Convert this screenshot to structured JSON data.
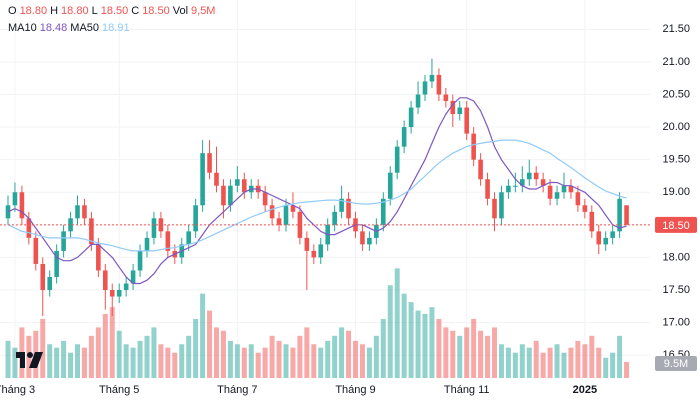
{
  "chart_data": {
    "type": "candlestick",
    "header": [
      [
        {
          "label": "O",
          "value": 18.8,
          "value_label": "18.80"
        },
        {
          "label": "H",
          "value": 18.8,
          "value_label": "18.80"
        },
        {
          "label": "L",
          "value": 18.5,
          "value_label": "18.50"
        },
        {
          "label": "C",
          "value": 18.5,
          "value_label": "18.50"
        },
        {
          "label": "Vol",
          "value": 9.5,
          "value_label": "9,5M"
        }
      ],
      [
        {
          "label": "MA10",
          "value": 18.48,
          "value_label": "18.48"
        },
        {
          "label": "MA50",
          "value": 18.91,
          "value_label": "18.91"
        }
      ]
    ],
    "categories": [
      null,
      "Tháng 3",
      null,
      null,
      null,
      null,
      null,
      null,
      null,
      null,
      null,
      null,
      null,
      null,
      null,
      null,
      "Tháng 5",
      null,
      null,
      null,
      null,
      null,
      null,
      null,
      null,
      null,
      null,
      null,
      null,
      null,
      null,
      null,
      null,
      "Tháng 7",
      null,
      null,
      null,
      null,
      null,
      null,
      null,
      null,
      null,
      null,
      null,
      null,
      null,
      null,
      null,
      null,
      "Tháng 9",
      null,
      null,
      null,
      null,
      null,
      null,
      null,
      null,
      null,
      null,
      null,
      null,
      null,
      null,
      null,
      "Tháng 11",
      null,
      null,
      null,
      null,
      null,
      null,
      null,
      null,
      null,
      null,
      null,
      null,
      null,
      null,
      null,
      null,
      "2025",
      null,
      null,
      null,
      null,
      null,
      null
    ],
    "open": [
      18.6,
      18.8,
      19.0,
      18.6,
      18.3,
      17.9,
      17.5,
      17.7,
      18.1,
      18.4,
      18.6,
      18.8,
      18.6,
      18.2,
      17.8,
      17.5,
      17.4,
      17.5,
      17.6,
      17.8,
      18.1,
      18.3,
      18.6,
      18.4,
      18.1,
      18.0,
      18.2,
      18.4,
      18.8,
      19.6,
      19.3,
      19.1,
      18.8,
      19.1,
      19.2,
      19.0,
      19.1,
      19.0,
      18.8,
      18.6,
      18.5,
      18.8,
      18.7,
      18.3,
      18.1,
      18.0,
      18.2,
      18.5,
      18.7,
      18.9,
      18.6,
      18.4,
      18.2,
      18.3,
      18.5,
      18.9,
      19.3,
      19.7,
      20.0,
      20.3,
      20.5,
      20.7,
      20.8,
      20.5,
      20.4,
      20.2,
      20.3,
      19.9,
      19.5,
      19.2,
      18.9,
      18.6,
      19.0,
      19.1,
      19.1,
      19.2,
      19.3,
      19.2,
      19.1,
      18.9,
      19.0,
      19.1,
      19.0,
      18.8,
      18.7,
      18.4,
      18.2,
      18.3,
      18.4,
      18.8
    ],
    "high": [
      18.95,
      19.15,
      19.1,
      18.7,
      18.4,
      18.0,
      17.8,
      18.2,
      18.5,
      18.7,
      18.95,
      18.9,
      18.7,
      18.3,
      17.9,
      17.6,
      17.6,
      17.7,
      17.9,
      18.2,
      18.4,
      18.7,
      18.7,
      18.5,
      18.2,
      18.3,
      18.5,
      18.9,
      19.8,
      19.8,
      19.7,
      19.2,
      19.2,
      19.4,
      19.3,
      19.2,
      19.2,
      19.1,
      18.9,
      18.7,
      18.9,
      19.0,
      18.8,
      18.4,
      18.2,
      18.3,
      18.6,
      18.8,
      19.1,
      19.0,
      18.7,
      18.5,
      18.4,
      18.6,
      19.0,
      19.4,
      19.8,
      20.1,
      20.4,
      20.7,
      20.8,
      21.05,
      20.9,
      20.6,
      20.5,
      20.4,
      20.4,
      20.0,
      19.6,
      19.3,
      19.0,
      19.1,
      19.2,
      19.3,
      19.4,
      19.5,
      19.4,
      19.3,
      19.2,
      19.1,
      19.3,
      19.2,
      19.1,
      18.9,
      18.8,
      18.5,
      18.4,
      18.5,
      19.0,
      18.8
    ],
    "low": [
      18.5,
      18.7,
      18.5,
      18.2,
      17.8,
      17.1,
      17.4,
      17.6,
      18.0,
      18.3,
      18.5,
      18.5,
      18.1,
      17.7,
      17.2,
      17.1,
      17.3,
      17.4,
      17.5,
      17.7,
      18.0,
      18.2,
      18.3,
      18.0,
      17.9,
      17.9,
      18.1,
      18.3,
      18.7,
      19.2,
      19.0,
      18.6,
      18.7,
      19.0,
      18.9,
      18.9,
      18.9,
      18.7,
      18.5,
      18.4,
      18.4,
      18.6,
      18.2,
      17.5,
      17.9,
      17.9,
      18.1,
      18.4,
      18.6,
      18.5,
      18.3,
      18.1,
      18.1,
      18.2,
      18.4,
      18.8,
      19.2,
      19.6,
      19.9,
      20.2,
      20.4,
      20.6,
      20.4,
      20.3,
      20.0,
      20.1,
      19.8,
      19.4,
      19.1,
      18.8,
      18.4,
      18.5,
      18.9,
      19.0,
      19.0,
      19.1,
      19.1,
      19.0,
      18.8,
      18.8,
      18.9,
      18.9,
      18.7,
      18.6,
      18.3,
      18.05,
      18.1,
      18.2,
      18.3,
      18.5
    ],
    "close": [
      18.8,
      19.0,
      18.6,
      18.3,
      17.9,
      17.5,
      17.7,
      18.1,
      18.4,
      18.6,
      18.8,
      18.6,
      18.2,
      17.8,
      17.5,
      17.4,
      17.5,
      17.6,
      17.8,
      18.1,
      18.3,
      18.6,
      18.4,
      18.1,
      18.0,
      18.2,
      18.4,
      18.8,
      19.6,
      19.3,
      19.1,
      18.8,
      19.1,
      19.2,
      19.0,
      19.1,
      19.0,
      18.8,
      18.6,
      18.5,
      18.8,
      18.7,
      18.3,
      18.1,
      18.0,
      18.2,
      18.5,
      18.7,
      18.9,
      18.6,
      18.4,
      18.2,
      18.3,
      18.5,
      18.9,
      19.3,
      19.7,
      20.0,
      20.3,
      20.5,
      20.7,
      20.8,
      20.5,
      20.4,
      20.2,
      20.3,
      19.9,
      19.5,
      19.2,
      18.9,
      18.6,
      19.0,
      19.1,
      19.1,
      19.2,
      19.3,
      19.2,
      19.1,
      18.9,
      19.0,
      19.1,
      19.0,
      18.8,
      18.7,
      18.4,
      18.2,
      18.3,
      18.4,
      18.9,
      18.5
    ],
    "volume": [
      22,
      18,
      30,
      25,
      28,
      35,
      20,
      18,
      22,
      15,
      20,
      18,
      25,
      30,
      38,
      42,
      28,
      20,
      18,
      22,
      25,
      30,
      20,
      18,
      15,
      20,
      25,
      35,
      50,
      40,
      30,
      28,
      22,
      20,
      18,
      20,
      15,
      18,
      25,
      22,
      20,
      18,
      25,
      30,
      20,
      18,
      22,
      25,
      30,
      28,
      22,
      20,
      18,
      25,
      35,
      55,
      65,
      50,
      45,
      40,
      38,
      42,
      35,
      30,
      28,
      25,
      30,
      35,
      28,
      25,
      30,
      20,
      18,
      15,
      20,
      18,
      22,
      15,
      18,
      20,
      15,
      18,
      22,
      20,
      25,
      18,
      12,
      15,
      25,
      9.5
    ],
    "volume_lim": [
      0,
      67
    ],
    "last_volume": {
      "value": 9.5,
      "label": "9.5M"
    },
    "ma": [
      {
        "name": "MA10",
        "color": "#7e57c2",
        "values": [
          18.7,
          18.75,
          18.7,
          18.6,
          18.45,
          18.3,
          18.15,
          18.0,
          17.95,
          17.95,
          18.0,
          18.1,
          18.2,
          18.2,
          18.1,
          18.0,
          17.85,
          17.7,
          17.6,
          17.6,
          17.65,
          17.75,
          17.9,
          18.0,
          18.05,
          18.1,
          18.15,
          18.2,
          18.35,
          18.5,
          18.6,
          18.7,
          18.8,
          18.9,
          19.0,
          19.05,
          19.05,
          19.0,
          18.95,
          18.9,
          18.85,
          18.8,
          18.75,
          18.6,
          18.5,
          18.4,
          18.35,
          18.35,
          18.4,
          18.45,
          18.5,
          18.5,
          18.45,
          18.4,
          18.45,
          18.55,
          18.7,
          18.9,
          19.1,
          19.3,
          19.5,
          19.75,
          20.0,
          20.2,
          20.35,
          20.45,
          20.45,
          20.4,
          20.25,
          20.0,
          19.7,
          19.5,
          19.35,
          19.2,
          19.1,
          19.05,
          19.05,
          19.1,
          19.15,
          19.15,
          19.1,
          19.1,
          19.05,
          19.0,
          18.9,
          18.8,
          18.65,
          18.5,
          18.45,
          18.48
        ]
      },
      {
        "name": "MA50",
        "color": "#90caf9",
        "values": [
          18.5,
          18.45,
          18.4,
          18.38,
          18.35,
          18.32,
          18.3,
          18.3,
          18.3,
          18.3,
          18.3,
          18.28,
          18.25,
          18.22,
          18.2,
          18.18,
          18.15,
          18.12,
          18.1,
          18.1,
          18.1,
          18.1,
          18.12,
          18.14,
          18.15,
          18.18,
          18.2,
          18.23,
          18.27,
          18.32,
          18.37,
          18.42,
          18.47,
          18.52,
          18.57,
          18.62,
          18.66,
          18.7,
          18.74,
          18.77,
          18.8,
          18.82,
          18.84,
          18.85,
          18.86,
          18.87,
          18.88,
          18.88,
          18.87,
          18.85,
          18.83,
          18.82,
          18.82,
          18.83,
          18.85,
          18.88,
          18.92,
          18.98,
          19.05,
          19.15,
          19.25,
          19.35,
          19.45,
          19.53,
          19.6,
          19.65,
          19.7,
          19.73,
          19.75,
          19.77,
          19.78,
          19.8,
          19.8,
          19.8,
          19.78,
          19.75,
          19.7,
          19.65,
          19.6,
          19.52,
          19.45,
          19.38,
          19.3,
          19.22,
          19.15,
          19.08,
          19.02,
          18.98,
          18.94,
          18.91
        ]
      }
    ],
    "up_color": "#26a69a",
    "down_color": "#ef5350",
    "ylim": [
      16.15,
      21.95
    ],
    "yticks": [
      {
        "value": 16.5,
        "label": "16.50"
      },
      {
        "value": 17,
        "label": "17.00"
      },
      {
        "value": 17.5,
        "label": "17.50"
      },
      {
        "value": 18,
        "label": "18.00"
      },
      {
        "value": 18.5,
        "label": "18.50"
      },
      {
        "value": 19,
        "label": "19.00"
      },
      {
        "value": 19.5,
        "label": "19.50"
      },
      {
        "value": 20,
        "label": "20.00"
      },
      {
        "value": 20.5,
        "label": "20.50"
      },
      {
        "value": 21,
        "label": "21.00"
      },
      {
        "value": 21.5,
        "label": "21.50"
      }
    ],
    "last_price": {
      "value": 18.5,
      "label": "18.50"
    },
    "grid": true
  }
}
